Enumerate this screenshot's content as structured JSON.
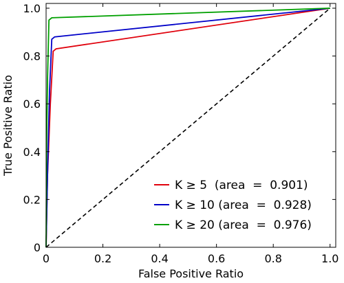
{
  "chart_data": {
    "type": "line",
    "title": "",
    "xlabel": "False Positive Ratio",
    "ylabel": "True Positive Ratio",
    "xlim": [
      0,
      1.02
    ],
    "ylim": [
      0,
      1.02
    ],
    "xticks": [
      0,
      0.2,
      0.4,
      0.6,
      0.8,
      1.0
    ],
    "xtick_labels": [
      "0",
      "0.2",
      "0.4",
      "0.6",
      "0.8",
      "1.0"
    ],
    "yticks": [
      0,
      0.2,
      0.4,
      0.6,
      0.8,
      1.0
    ],
    "ytick_labels": [
      "0",
      "0.2",
      "0.4",
      "0.6",
      "0.8",
      "1.0"
    ],
    "grid": false,
    "legend_position": "bottom-right",
    "series": [
      {
        "name": "K ≥ 5  (area  =  0.901)",
        "color": "#e0000b",
        "style": "solid",
        "x": [
          0,
          0.005,
          0.015,
          0.025,
          0.035,
          1.0
        ],
        "y": [
          0,
          0.3,
          0.6,
          0.82,
          0.83,
          1.0
        ]
      },
      {
        "name": "K ≥ 10 (area  =  0.928)",
        "color": "#0000c8",
        "style": "solid",
        "x": [
          0,
          0.005,
          0.012,
          0.02,
          0.03,
          1.0
        ],
        "y": [
          0,
          0.3,
          0.65,
          0.87,
          0.88,
          1.0
        ]
      },
      {
        "name": "K ≥ 20 (area  =  0.976)",
        "color": "#00a000",
        "style": "solid",
        "x": [
          0,
          0.002,
          0.005,
          0.01,
          0.02,
          1.0
        ],
        "y": [
          0,
          0.45,
          0.7,
          0.95,
          0.96,
          1.0
        ]
      },
      {
        "name": "",
        "color": "#000000",
        "style": "dashed",
        "x": [
          0,
          1.0
        ],
        "y": [
          0,
          1.0
        ]
      }
    ]
  }
}
